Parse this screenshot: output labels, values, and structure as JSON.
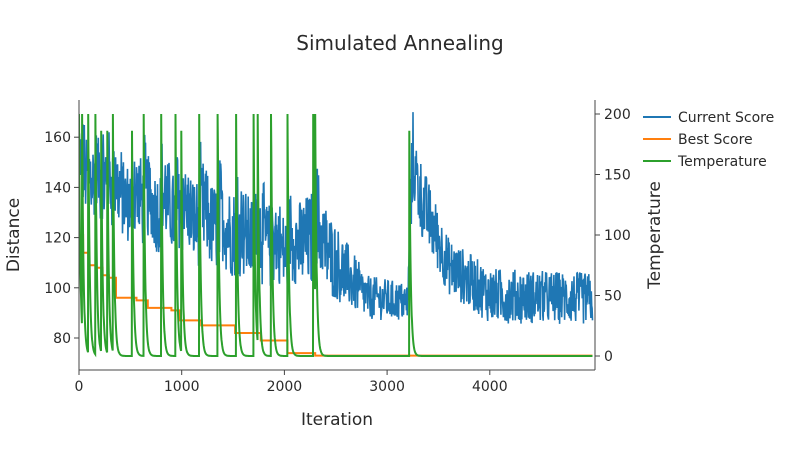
{
  "chart_data": {
    "type": "line",
    "title": "Simulated Annealing",
    "xlabel": "Iteration",
    "ylabel": "Distance",
    "y2label": "Temperature",
    "xlim": [
      0,
      5000
    ],
    "ylim": [
      69,
      174
    ],
    "y2lim": [
      -10,
      210
    ],
    "xticks": [
      0,
      1000,
      2000,
      3000,
      4000
    ],
    "yticks": [
      80,
      100,
      120,
      140,
      160
    ],
    "y2ticks": [
      0,
      50,
      100,
      150,
      200
    ],
    "grid": false,
    "legend_position": "top-right-outside",
    "colors": {
      "current": "#1f77b4",
      "best": "#ff7f0e",
      "temperature": "#2ca02c"
    },
    "series": [
      {
        "name": "Current Score",
        "axis": "left",
        "description": "Noisy sawtooth: restarts high after each temperature reheat then decays toward the best score",
        "envelope": [
          {
            "x": 0,
            "high": 155,
            "low": 110
          },
          {
            "x": 500,
            "high": 150,
            "low": 100
          },
          {
            "x": 1000,
            "high": 145,
            "low": 92
          },
          {
            "x": 1500,
            "high": 140,
            "low": 85
          },
          {
            "x": 2000,
            "high": 130,
            "low": 80
          },
          {
            "x": 2300,
            "high": 140,
            "low": 78
          },
          {
            "x": 2800,
            "high": 105,
            "low": 78
          },
          {
            "x": 3200,
            "high": 102,
            "low": 78
          },
          {
            "x": 3250,
            "high": 160,
            "low": 110
          },
          {
            "x": 3600,
            "high": 120,
            "low": 85
          },
          {
            "x": 4000,
            "high": 108,
            "low": 74
          },
          {
            "x": 5000,
            "high": 106,
            "low": 74
          }
        ]
      },
      {
        "name": "Best Score",
        "axis": "left",
        "steps": [
          {
            "x": 0,
            "y": 121
          },
          {
            "x": 40,
            "y": 114
          },
          {
            "x": 100,
            "y": 109
          },
          {
            "x": 170,
            "y": 108
          },
          {
            "x": 230,
            "y": 105
          },
          {
            "x": 290,
            "y": 104
          },
          {
            "x": 360,
            "y": 96
          },
          {
            "x": 560,
            "y": 95
          },
          {
            "x": 670,
            "y": 92
          },
          {
            "x": 900,
            "y": 91
          },
          {
            "x": 980,
            "y": 87
          },
          {
            "x": 1190,
            "y": 85
          },
          {
            "x": 1520,
            "y": 82
          },
          {
            "x": 1770,
            "y": 79
          },
          {
            "x": 2030,
            "y": 74
          },
          {
            "x": 2300,
            "y": 73
          },
          {
            "x": 5000,
            "y": 73
          }
        ]
      },
      {
        "name": "Temperature",
        "axis": "right",
        "peak": 200,
        "floor": 0,
        "reheat_iterations": [
          0,
          30,
          90,
          160,
          215,
          275,
          330,
          515,
          630,
          800,
          940,
          995,
          1170,
          1350,
          1530,
          1700,
          1740,
          1870,
          2030,
          2280,
          2300,
          3215
        ]
      }
    ]
  }
}
